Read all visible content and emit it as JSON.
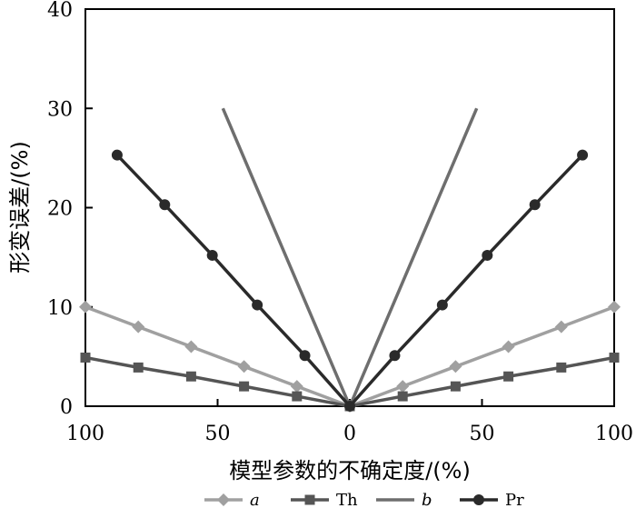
{
  "chart_data": {
    "type": "line",
    "xlabel": "模型参数的不确定度/(%)",
    "ylabel": "形变误差/(%)",
    "x_ticks": [
      {
        "value": -100,
        "label": "100"
      },
      {
        "value": -50,
        "label": "50"
      },
      {
        "value": 0,
        "label": "0"
      },
      {
        "value": 50,
        "label": "50"
      },
      {
        "value": 100,
        "label": "100"
      }
    ],
    "y_ticks": [
      {
        "value": 0,
        "label": "0"
      },
      {
        "value": 10,
        "label": "10"
      },
      {
        "value": 20,
        "label": "20"
      },
      {
        "value": 30,
        "label": "30"
      },
      {
        "value": 40,
        "label": "40"
      }
    ],
    "xlim": [
      -100,
      100
    ],
    "ylim": [
      0,
      40
    ],
    "grid": false,
    "legend_position": "bottom",
    "series": [
      {
        "name": "a",
        "color": "#a0a0a0",
        "marker": "diamond",
        "points": [
          [
            -100,
            10
          ],
          [
            -80,
            8
          ],
          [
            -60,
            6
          ],
          [
            -40,
            4
          ],
          [
            -20,
            2
          ],
          [
            0,
            0
          ],
          [
            20,
            2
          ],
          [
            40,
            4
          ],
          [
            60,
            6
          ],
          [
            80,
            8
          ],
          [
            100,
            10
          ]
        ]
      },
      {
        "name": "Th",
        "color": "#555555",
        "marker": "square",
        "points": [
          [
            -100,
            4.9
          ],
          [
            -80,
            3.9
          ],
          [
            -60,
            3
          ],
          [
            -40,
            2
          ],
          [
            -20,
            1
          ],
          [
            0,
            0
          ],
          [
            20,
            1
          ],
          [
            40,
            2
          ],
          [
            60,
            3
          ],
          [
            80,
            3.9
          ],
          [
            100,
            4.9
          ]
        ]
      },
      {
        "name": "b",
        "color": "#6e6e6e",
        "marker": "none",
        "points": [
          [
            -48,
            30
          ],
          [
            0,
            0
          ],
          [
            48,
            30
          ]
        ]
      },
      {
        "name": "Pr",
        "color": "#2a2a2a",
        "marker": "circle",
        "points": [
          [
            -88,
            25.3
          ],
          [
            -70,
            20.3
          ],
          [
            -52,
            15.2
          ],
          [
            -35,
            10.2
          ],
          [
            -17,
            5.1
          ],
          [
            0,
            0
          ],
          [
            17,
            5.1
          ],
          [
            35,
            10.2
          ],
          [
            52,
            15.2
          ],
          [
            70,
            20.3
          ],
          [
            88,
            25.3
          ]
        ]
      }
    ]
  }
}
